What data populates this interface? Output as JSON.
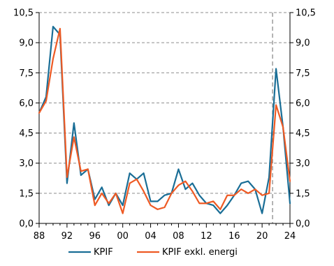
{
  "chart_data": {
    "type": "line",
    "title": "",
    "xlabel": "",
    "ylabel": "",
    "ylim": [
      0,
      10.5
    ],
    "xlim": [
      1988,
      2024
    ],
    "y_ticks": [
      0,
      1.5,
      3.0,
      4.5,
      6.0,
      7.5,
      9.0,
      10.5
    ],
    "y_tick_labels": [
      "0,0",
      "1,5",
      "3,0",
      "4,5",
      "6,0",
      "7,5",
      "9,0",
      "10,5"
    ],
    "y_tick_labels_right": [
      "0,0",
      "1,5",
      "3,0",
      "4,5",
      "6,0",
      "7,5",
      "9,0",
      "10,5"
    ],
    "x_ticks": [
      1988,
      1992,
      1996,
      2000,
      2004,
      2008,
      2012,
      2016,
      2020,
      2024
    ],
    "x_tick_labels": [
      "88",
      "92",
      "96",
      "00",
      "04",
      "08",
      "12",
      "16",
      "20",
      "24"
    ],
    "grid": "horizontal dashed",
    "forecast_line_x": 2021.5,
    "legend_position": "bottom",
    "x": [
      1988,
      1989,
      1990,
      1991,
      1992,
      1993,
      1994,
      1995,
      1996,
      1997,
      1998,
      1999,
      2000,
      2001,
      2002,
      2003,
      2004,
      2005,
      2006,
      2007,
      2008,
      2009,
      2010,
      2011,
      2012,
      2013,
      2014,
      2015,
      2016,
      2017,
      2018,
      2019,
      2020,
      2021,
      2022,
      2023,
      2024
    ],
    "series": [
      {
        "name": "KPIF",
        "color": "#1a6e96",
        "values": [
          5.5,
          6.3,
          9.8,
          9.4,
          2.0,
          5.0,
          2.4,
          2.7,
          1.2,
          1.8,
          0.9,
          1.5,
          0.9,
          2.5,
          2.2,
          2.5,
          1.1,
          1.1,
          1.4,
          1.5,
          2.7,
          1.7,
          2.0,
          1.4,
          1.0,
          0.9,
          0.5,
          0.9,
          1.4,
          2.0,
          2.1,
          1.7,
          0.5,
          2.3,
          7.7,
          4.8,
          1.0
        ]
      },
      {
        "name": "KPIF exkl. energi",
        "color": "#ee5a24",
        "values": [
          5.5,
          6.1,
          8.2,
          9.7,
          2.3,
          4.3,
          2.6,
          2.7,
          0.9,
          1.5,
          1.0,
          1.5,
          0.5,
          2.0,
          2.2,
          1.6,
          0.9,
          0.7,
          0.8,
          1.5,
          1.9,
          2.1,
          1.6,
          1.0,
          1.0,
          1.1,
          0.7,
          1.4,
          1.4,
          1.7,
          1.5,
          1.7,
          1.4,
          1.5,
          5.9,
          4.8,
          2.1
        ]
      }
    ]
  }
}
